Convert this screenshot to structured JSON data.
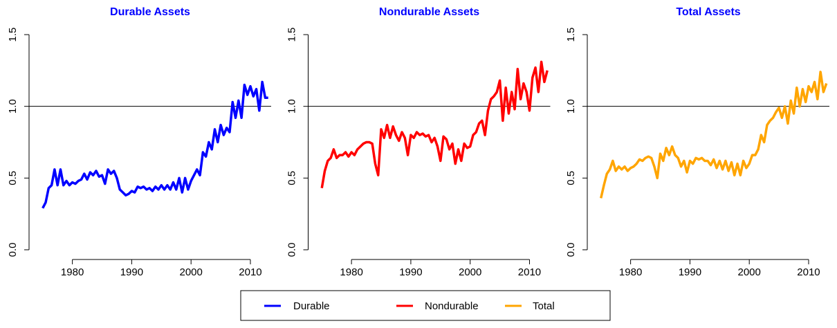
{
  "chart_data": [
    {
      "type": "line",
      "title": "Durable Assets",
      "x": [
        1975,
        1975.5,
        1976,
        1976.5,
        1977,
        1977.5,
        1978,
        1978.5,
        1979,
        1979.5,
        1980,
        1980.5,
        1981,
        1981.5,
        1982,
        1982.5,
        1983,
        1983.5,
        1984,
        1984.5,
        1985,
        1985.5,
        1986,
        1986.5,
        1987,
        1987.5,
        1988,
        1988.5,
        1989,
        1989.5,
        1990,
        1990.5,
        1991,
        1991.5,
        1992,
        1992.5,
        1993,
        1993.5,
        1994,
        1994.5,
        1995,
        1995.5,
        1996,
        1996.5,
        1997,
        1997.5,
        1998,
        1998.5,
        1999,
        1999.5,
        2000,
        2000.5,
        2001,
        2001.5,
        2002,
        2002.5,
        2003,
        2003.5,
        2004,
        2004.5,
        2005,
        2005.5,
        2006,
        2006.5,
        2007,
        2007.5,
        2008,
        2008.5,
        2009,
        2009.5,
        2010,
        2010.5,
        2011,
        2011.5,
        2012,
        2012.5,
        2013
      ],
      "series": [
        {
          "name": "Durable",
          "color": "#0000ff",
          "values": [
            0.29,
            0.33,
            0.43,
            0.45,
            0.56,
            0.45,
            0.56,
            0.45,
            0.48,
            0.45,
            0.47,
            0.46,
            0.48,
            0.49,
            0.53,
            0.49,
            0.54,
            0.52,
            0.55,
            0.51,
            0.52,
            0.46,
            0.56,
            0.53,
            0.55,
            0.5,
            0.42,
            0.4,
            0.38,
            0.39,
            0.41,
            0.4,
            0.44,
            0.43,
            0.44,
            0.42,
            0.43,
            0.41,
            0.44,
            0.42,
            0.45,
            0.42,
            0.45,
            0.42,
            0.47,
            0.42,
            0.5,
            0.4,
            0.5,
            0.42,
            0.48,
            0.52,
            0.56,
            0.52,
            0.68,
            0.65,
            0.75,
            0.7,
            0.84,
            0.75,
            0.87,
            0.8,
            0.85,
            0.82,
            1.03,
            0.92,
            1.04,
            0.92,
            1.15,
            1.08,
            1.14,
            1.07,
            1.12,
            0.97,
            1.17,
            1.06,
            1.06
          ]
        }
      ],
      "hline": 1,
      "xlim": [
        1972.7,
        2013.5
      ],
      "ylim": [
        -0.06,
        1.56
      ],
      "xticks": [
        1980,
        1990,
        2000,
        2010
      ],
      "yticks": [
        {
          "value": 0,
          "label": "0.0"
        },
        {
          "value": 0.5,
          "label": "0.5"
        },
        {
          "value": 1,
          "label": "1.0"
        },
        {
          "value": 1.5,
          "label": "1.5"
        }
      ]
    },
    {
      "type": "line",
      "title": "Nondurable Assets",
      "x": [
        1975,
        1975.5,
        1976,
        1976.5,
        1977,
        1977.5,
        1978,
        1978.5,
        1979,
        1979.5,
        1980,
        1980.5,
        1981,
        1981.5,
        1982,
        1982.5,
        1983,
        1983.5,
        1984,
        1984.5,
        1985,
        1985.5,
        1986,
        1986.5,
        1987,
        1987.5,
        1988,
        1988.5,
        1989,
        1989.5,
        1990,
        1990.5,
        1991,
        1991.5,
        1992,
        1992.5,
        1993,
        1993.5,
        1994,
        1994.5,
        1995,
        1995.5,
        1996,
        1996.5,
        1997,
        1997.5,
        1998,
        1998.5,
        1999,
        1999.5,
        2000,
        2000.5,
        2001,
        2001.5,
        2002,
        2002.5,
        2003,
        2003.5,
        2004,
        2004.5,
        2005,
        2005.5,
        2006,
        2006.5,
        2007,
        2007.5,
        2008,
        2008.5,
        2009,
        2009.5,
        2010,
        2010.5,
        2011,
        2011.5,
        2012,
        2012.5,
        2013
      ],
      "series": [
        {
          "name": "Nondurable",
          "color": "#ff0000",
          "values": [
            0.43,
            0.55,
            0.62,
            0.64,
            0.7,
            0.64,
            0.66,
            0.66,
            0.68,
            0.65,
            0.68,
            0.66,
            0.7,
            0.72,
            0.74,
            0.75,
            0.75,
            0.74,
            0.6,
            0.52,
            0.84,
            0.78,
            0.87,
            0.78,
            0.86,
            0.8,
            0.76,
            0.82,
            0.78,
            0.66,
            0.8,
            0.78,
            0.82,
            0.8,
            0.81,
            0.79,
            0.8,
            0.75,
            0.78,
            0.72,
            0.62,
            0.79,
            0.77,
            0.7,
            0.74,
            0.6,
            0.7,
            0.62,
            0.74,
            0.71,
            0.72,
            0.8,
            0.82,
            0.88,
            0.9,
            0.8,
            0.97,
            1.05,
            1.07,
            1.1,
            1.18,
            0.9,
            1.13,
            0.95,
            1.1,
            0.98,
            1.26,
            1.05,
            1.16,
            1.1,
            0.97,
            1.2,
            1.27,
            1.1,
            1.31,
            1.17,
            1.25
          ]
        }
      ],
      "hline": 1,
      "xlim": [
        1972.7,
        2013.5
      ],
      "ylim": [
        -0.06,
        1.56
      ],
      "xticks": [
        1980,
        1990,
        2000,
        2010
      ],
      "yticks": [
        {
          "value": 0,
          "label": "0.0"
        },
        {
          "value": 0.5,
          "label": "0.5"
        },
        {
          "value": 1,
          "label": "1.0"
        },
        {
          "value": 1.5,
          "label": "1.5"
        }
      ]
    },
    {
      "type": "line",
      "title": "Total Assets",
      "x": [
        1975,
        1975.5,
        1976,
        1976.5,
        1977,
        1977.5,
        1978,
        1978.5,
        1979,
        1979.5,
        1980,
        1980.5,
        1981,
        1981.5,
        1982,
        1982.5,
        1983,
        1983.5,
        1984,
        1984.5,
        1985,
        1985.5,
        1986,
        1986.5,
        1987,
        1987.5,
        1988,
        1988.5,
        1989,
        1989.5,
        1990,
        1990.5,
        1991,
        1991.5,
        1992,
        1992.5,
        1993,
        1993.5,
        1994,
        1994.5,
        1995,
        1995.5,
        1996,
        1996.5,
        1997,
        1997.5,
        1998,
        1998.5,
        1999,
        1999.5,
        2000,
        2000.5,
        2001,
        2001.5,
        2002,
        2002.5,
        2003,
        2003.5,
        2004,
        2004.5,
        2005,
        2005.5,
        2006,
        2006.5,
        2007,
        2007.5,
        2008,
        2008.5,
        2009,
        2009.5,
        2010,
        2010.5,
        2011,
        2011.5,
        2012,
        2012.5,
        2013
      ],
      "series": [
        {
          "name": "Total",
          "color": "#ffa500",
          "values": [
            0.36,
            0.45,
            0.53,
            0.56,
            0.62,
            0.55,
            0.58,
            0.56,
            0.58,
            0.55,
            0.57,
            0.58,
            0.6,
            0.63,
            0.62,
            0.64,
            0.65,
            0.64,
            0.58,
            0.5,
            0.67,
            0.62,
            0.71,
            0.66,
            0.72,
            0.66,
            0.64,
            0.58,
            0.62,
            0.54,
            0.62,
            0.6,
            0.64,
            0.63,
            0.64,
            0.62,
            0.62,
            0.59,
            0.63,
            0.57,
            0.62,
            0.56,
            0.62,
            0.55,
            0.61,
            0.52,
            0.6,
            0.52,
            0.62,
            0.57,
            0.6,
            0.66,
            0.66,
            0.7,
            0.8,
            0.75,
            0.87,
            0.9,
            0.92,
            0.96,
            0.99,
            0.92,
            1.0,
            0.88,
            1.04,
            0.95,
            1.13,
            1.0,
            1.12,
            1.03,
            1.14,
            1.1,
            1.17,
            1.05,
            1.24,
            1.1,
            1.16
          ]
        }
      ],
      "hline": 1,
      "xlim": [
        1972.7,
        2013.5
      ],
      "ylim": [
        -0.06,
        1.56
      ],
      "xticks": [
        1980,
        1990,
        2000,
        2010
      ],
      "yticks": [
        {
          "value": 0,
          "label": "0.0"
        },
        {
          "value": 0.5,
          "label": "0.5"
        },
        {
          "value": 1,
          "label": "1.0"
        },
        {
          "value": 1.5,
          "label": "1.5"
        }
      ]
    }
  ]
}
